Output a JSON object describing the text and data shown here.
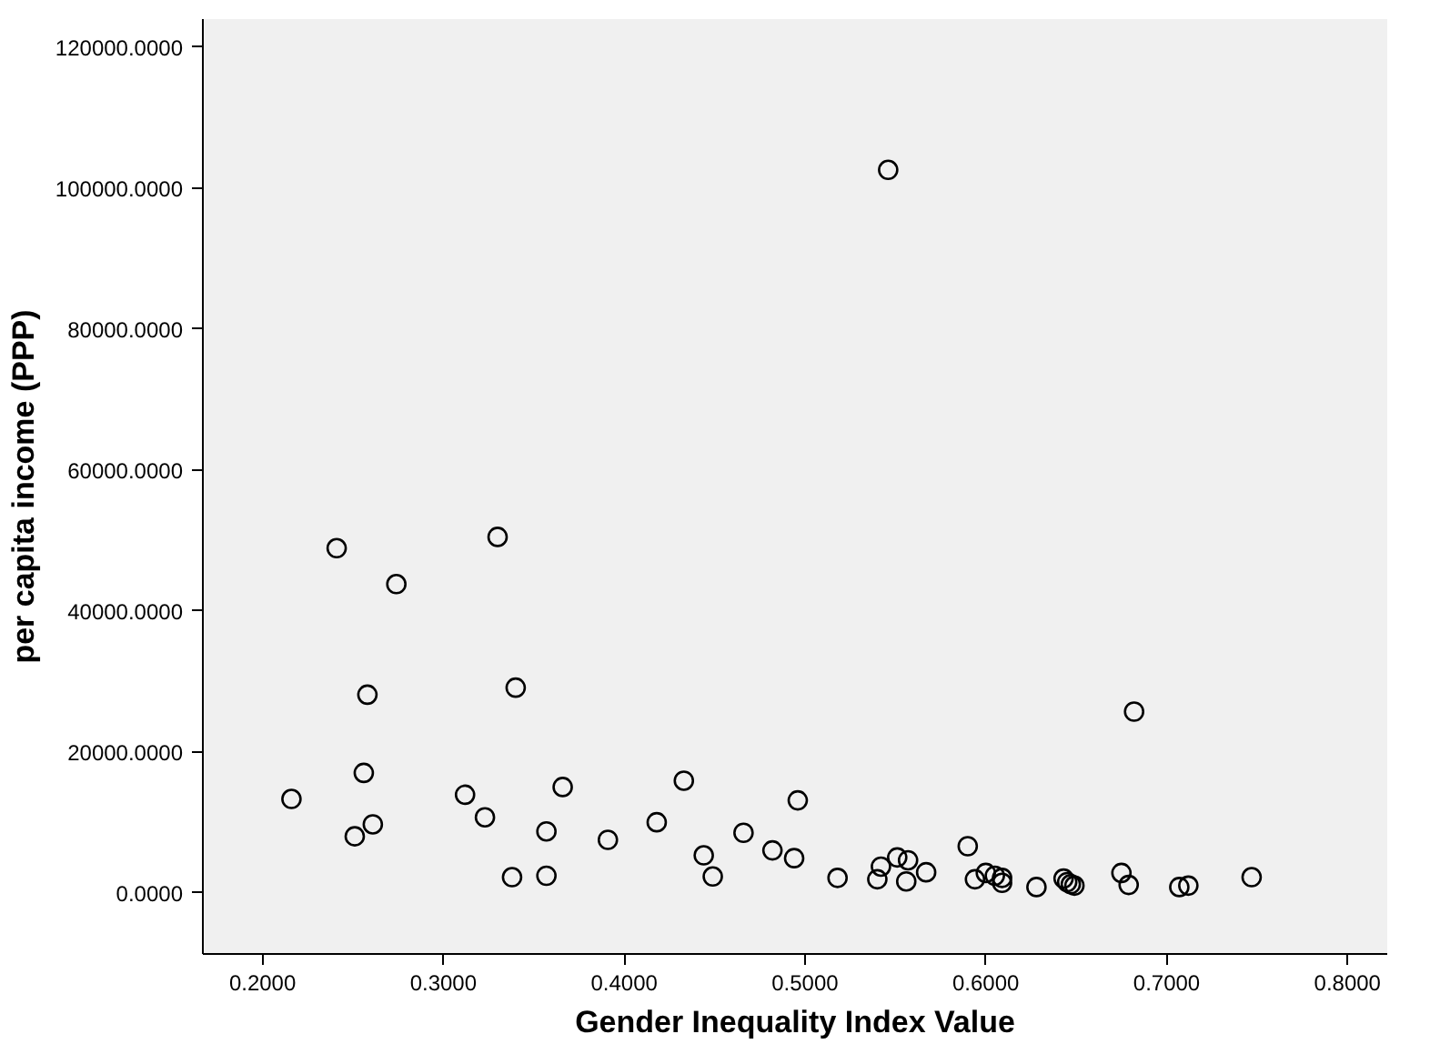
{
  "chart_data": {
    "type": "scatter",
    "xlabel": "Gender Inequality Index Value",
    "ylabel": "per capita income (PPP)",
    "marker": "circle",
    "grid": false,
    "xlim": [
      0.167,
      0.822
    ],
    "ylim": [
      -8700,
      124000
    ],
    "xticks": [
      {
        "value": 0.2,
        "label": "0.2000"
      },
      {
        "value": 0.3,
        "label": "0.3000"
      },
      {
        "value": 0.4,
        "label": "0.4000"
      },
      {
        "value": 0.5,
        "label": "0.5000"
      },
      {
        "value": 0.6,
        "label": "0.6000"
      },
      {
        "value": 0.7,
        "label": "0.7000"
      },
      {
        "value": 0.8,
        "label": "0.8000"
      }
    ],
    "yticks": [
      {
        "value": 0,
        "label": "0.0000"
      },
      {
        "value": 20000,
        "label": "20000.0000"
      },
      {
        "value": 40000,
        "label": "40000.0000"
      },
      {
        "value": 60000,
        "label": "60000.0000"
      },
      {
        "value": 80000,
        "label": "80000.0000"
      },
      {
        "value": 100000,
        "label": "100000.0000"
      },
      {
        "value": 120000,
        "label": "120000.0000"
      }
    ],
    "series": [
      {
        "color": "#000000",
        "x": [
          0.546,
          0.241,
          0.33,
          0.274,
          0.258,
          0.34,
          0.256,
          0.216,
          0.261,
          0.251,
          0.312,
          0.323,
          0.366,
          0.357,
          0.338,
          0.357,
          0.391,
          0.418,
          0.433,
          0.466,
          0.444,
          0.449,
          0.482,
          0.496,
          0.494,
          0.682,
          0.518,
          0.54,
          0.542,
          0.551,
          0.557,
          0.556,
          0.567,
          0.59,
          0.594,
          0.6,
          0.605,
          0.609,
          0.609,
          0.628,
          0.643,
          0.645,
          0.647,
          0.649,
          0.675,
          0.679,
          0.707,
          0.712,
          0.747
        ],
        "values": [
          102600,
          48900,
          50500,
          43800,
          28100,
          29100,
          17000,
          13300,
          9700,
          8000,
          13900,
          10700,
          15000,
          8700,
          2200,
          2400,
          7500,
          10000,
          15900,
          8500,
          5300,
          2300,
          6000,
          13100,
          4900,
          25700,
          2100,
          1900,
          3700,
          5000,
          4600,
          1600,
          2900,
          6600,
          1900,
          2800,
          2400,
          2100,
          1400,
          800,
          2000,
          1500,
          1200,
          1000,
          2800,
          1100,
          800,
          1000,
          2200
        ]
      }
    ]
  }
}
